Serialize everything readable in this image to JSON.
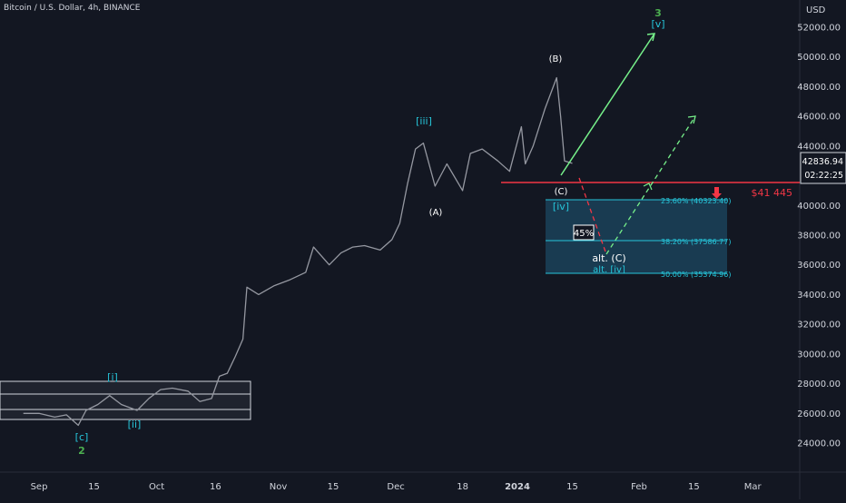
{
  "header": {
    "symbol": "Bitcoin / U.S. Dollar, 4h, BINANCE"
  },
  "price_axis": {
    "currency": "USD",
    "ticks": [
      "52000.00",
      "50000.00",
      "48000.00",
      "46000.00",
      "44000.00",
      "40000.00",
      "38000.00",
      "36000.00",
      "34000.00",
      "32000.00",
      "30000.00",
      "28000.00",
      "26000.00",
      "24000.00"
    ],
    "last_price": "42836.94",
    "countdown": "02:22:25"
  },
  "time_axis": {
    "ticks": [
      "Sep",
      "15",
      "Oct",
      "16",
      "Nov",
      "15",
      "Dec",
      "18",
      "2024",
      "15",
      "Feb",
      "15",
      "Mar"
    ]
  },
  "annotations": {
    "wave_3": "3",
    "wave_v": "[v]",
    "wave_B": "(B)",
    "wave_iii": "[iii]",
    "wave_A": "(A)",
    "wave_C": "(C)",
    "wave_iv": "[iv]",
    "wave_alt_C": "alt. (C)",
    "wave_alt_iv": "alt. [iv]",
    "wave_i": "[i]",
    "wave_ii": "[ii]",
    "wave_c": "[c]",
    "wave_2": "2",
    "percent_box": "45%",
    "support_label": "$41 445"
  },
  "fib_levels": {
    "l236": "23.60% (40323.40)",
    "l382": "38.20% (37586.77)",
    "l500": "50.00% (35374.96)"
  },
  "colors": {
    "background": "#131722",
    "candles": "#9598a1",
    "support": "#f23645",
    "wave_green": "#4caf50",
    "wave_cyan": "#26c6da",
    "projection": "#76f08a",
    "fib_zone": "#1f5a78"
  },
  "chart_data": {
    "type": "line",
    "title": "Bitcoin / U.S. Dollar, 4h, BINANCE",
    "xlabel": "",
    "ylabel": "",
    "ylim": [
      23000,
      53000
    ],
    "series": [
      {
        "values": [
          {
            "x": "2023-08-28",
            "y": 26000
          },
          {
            "x": "2023-09-01",
            "y": 26000
          },
          {
            "x": "2023-09-05",
            "y": 25750
          },
          {
            "x": "2023-09-08",
            "y": 25900
          },
          {
            "x": "2023-09-11",
            "y": 25200
          },
          {
            "x": "2023-09-13",
            "y": 26200
          },
          {
            "x": "2023-09-16",
            "y": 26600
          },
          {
            "x": "2023-09-19",
            "y": 27200
          },
          {
            "x": "2023-09-22",
            "y": 26600
          },
          {
            "x": "2023-09-26",
            "y": 26200
          },
          {
            "x": "2023-09-29",
            "y": 27000
          },
          {
            "x": "2023-10-02",
            "y": 27600
          },
          {
            "x": "2023-10-05",
            "y": 27700
          },
          {
            "x": "2023-10-09",
            "y": 27500
          },
          {
            "x": "2023-10-12",
            "y": 26800
          },
          {
            "x": "2023-10-15",
            "y": 27000
          },
          {
            "x": "2023-10-17",
            "y": 28500
          },
          {
            "x": "2023-10-19",
            "y": 28700
          },
          {
            "x": "2023-10-21",
            "y": 29800
          },
          {
            "x": "2023-10-23",
            "y": 31000
          },
          {
            "x": "2023-10-24",
            "y": 34500
          },
          {
            "x": "2023-10-27",
            "y": 34000
          },
          {
            "x": "2023-10-31",
            "y": 34600
          },
          {
            "x": "2023-11-04",
            "y": 35000
          },
          {
            "x": "2023-11-08",
            "y": 35500
          },
          {
            "x": "2023-11-10",
            "y": 37200
          },
          {
            "x": "2023-11-14",
            "y": 36000
          },
          {
            "x": "2023-11-17",
            "y": 36800
          },
          {
            "x": "2023-11-20",
            "y": 37200
          },
          {
            "x": "2023-11-23",
            "y": 37300
          },
          {
            "x": "2023-11-27",
            "y": 37000
          },
          {
            "x": "2023-11-30",
            "y": 37700
          },
          {
            "x": "2023-12-02",
            "y": 38800
          },
          {
            "x": "2023-12-04",
            "y": 41500
          },
          {
            "x": "2023-12-06",
            "y": 43800
          },
          {
            "x": "2023-12-08",
            "y": 44200
          },
          {
            "x": "2023-12-11",
            "y": 41300
          },
          {
            "x": "2023-12-14",
            "y": 42800
          },
          {
            "x": "2023-12-18",
            "y": 41000
          },
          {
            "x": "2023-12-20",
            "y": 43500
          },
          {
            "x": "2023-12-23",
            "y": 43800
          },
          {
            "x": "2023-12-27",
            "y": 43000
          },
          {
            "x": "2023-12-30",
            "y": 42300
          },
          {
            "x": "2024-01-02",
            "y": 45300
          },
          {
            "x": "2024-01-03",
            "y": 42800
          },
          {
            "x": "2024-01-05",
            "y": 44000
          },
          {
            "x": "2024-01-08",
            "y": 46500
          },
          {
            "x": "2024-01-11",
            "y": 48600
          },
          {
            "x": "2024-01-12",
            "y": 46000
          },
          {
            "x": "2024-01-13",
            "y": 43000
          },
          {
            "x": "2024-01-15",
            "y": 42837
          }
        ]
      }
    ],
    "support_level": 41445,
    "fib_zone": {
      "top": 40323.4,
      "bottom": 35374.96
    },
    "projections": {
      "primary": [
        {
          "x": "2024-01-15",
          "y": 41600
        },
        {
          "x": "2024-02-07",
          "y": 51500
        }
      ],
      "alternate": [
        {
          "x": "2024-01-15",
          "y": 42000
        },
        {
          "x": "2024-01-25",
          "y": 36800
        },
        {
          "x": "2024-02-10",
          "y": 46000
        }
      ]
    }
  }
}
